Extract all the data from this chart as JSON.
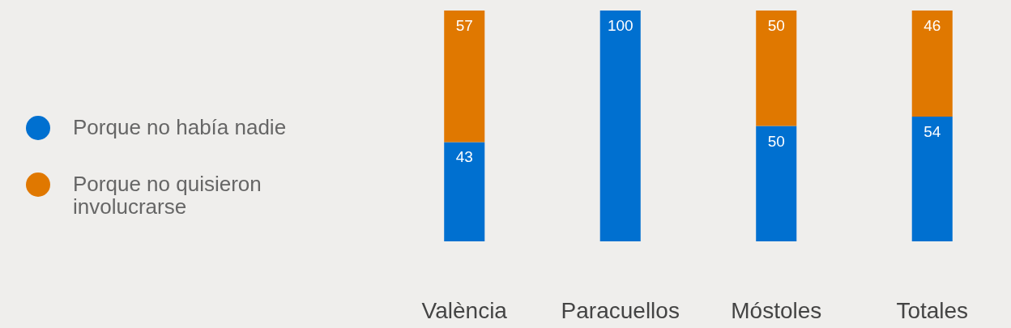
{
  "chart_data": {
    "type": "bar",
    "stacked": true,
    "categories": [
      "València",
      "Paracuellos",
      "Móstoles",
      "Totales"
    ],
    "series": [
      {
        "name": "Porque no había nadie",
        "color": "#0070d0",
        "values": [
          43,
          100,
          50,
          54
        ]
      },
      {
        "name": "Porque no quisieron involucrarse",
        "color": "#e07800",
        "values": [
          57,
          null,
          50,
          46
        ]
      }
    ],
    "data_labels": true,
    "legend": "left"
  }
}
